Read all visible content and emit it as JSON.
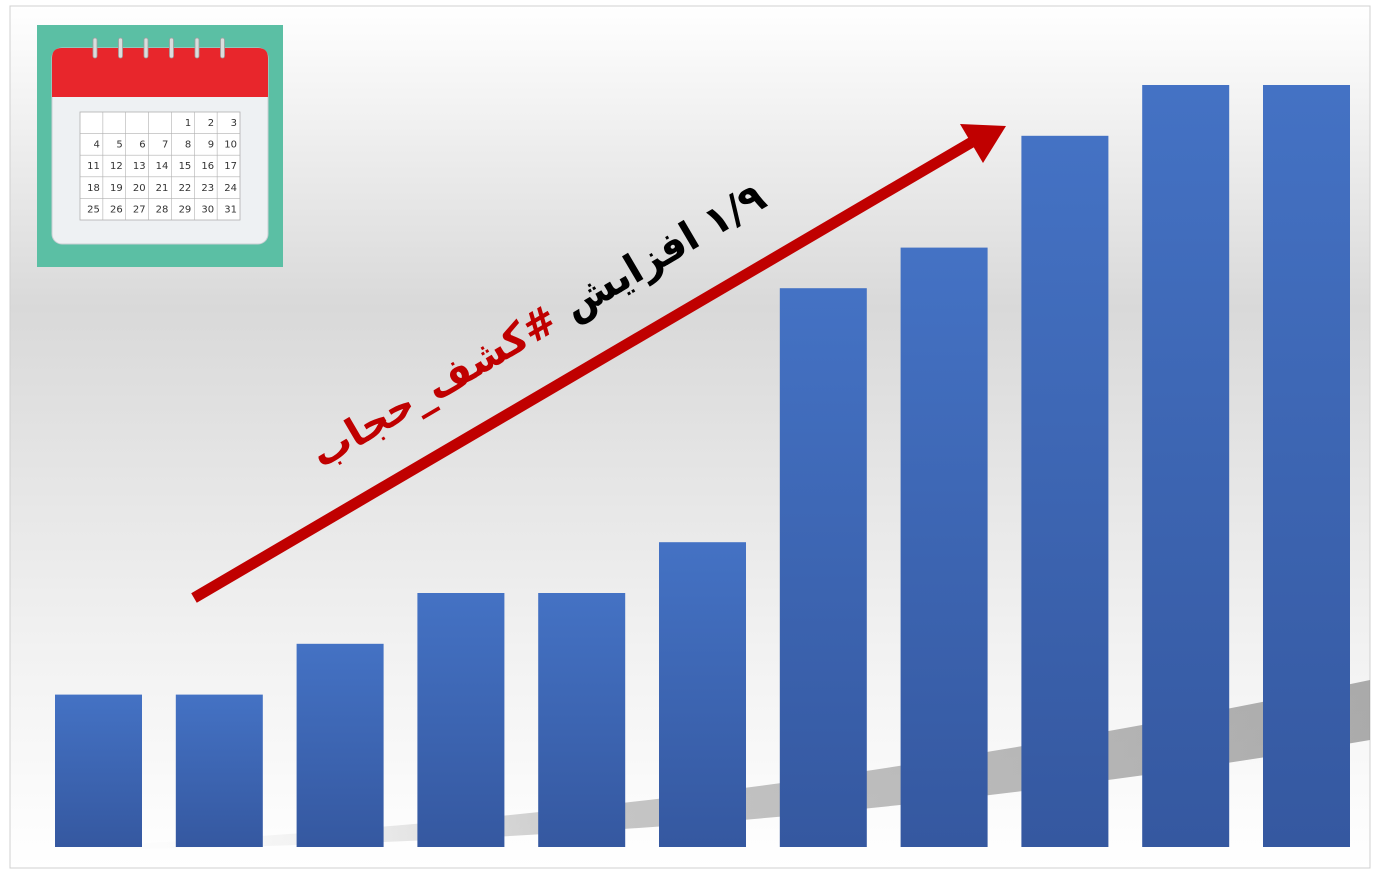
{
  "colors": {
    "bar": "#4472c4",
    "bar_dark": "#3558a0",
    "arrow": "#c00000",
    "annotation_primary": "#000000",
    "annotation_hashtag": "#c00000",
    "calendar_bg": "#5bbfa4",
    "calendar_header": "#e8262c"
  },
  "icons": {
    "calendar": "calendar-icon"
  },
  "calendar": {
    "weeks": [
      [
        "",
        "",
        "",
        "",
        "1",
        "2",
        "3"
      ],
      [
        "4",
        "5",
        "6",
        "7",
        "8",
        "9",
        "10"
      ],
      [
        "11",
        "12",
        "13",
        "14",
        "15",
        "16",
        "17"
      ],
      [
        "18",
        "19",
        "20",
        "21",
        "22",
        "23",
        "24"
      ],
      [
        "25",
        "26",
        "27",
        "28",
        "29",
        "30",
        "31"
      ]
    ]
  },
  "annotation": {
    "increase": "۱/۹ افزایش",
    "hashtag": "#کشف_حجاب"
  },
  "chart_data": {
    "type": "bar",
    "trend": "increasing",
    "values": [
      3,
      3,
      4,
      5,
      5,
      6,
      11,
      11.8,
      14,
      15,
      15
    ],
    "ylim": [
      0,
      15.5
    ],
    "grid": false,
    "legend": "none"
  }
}
